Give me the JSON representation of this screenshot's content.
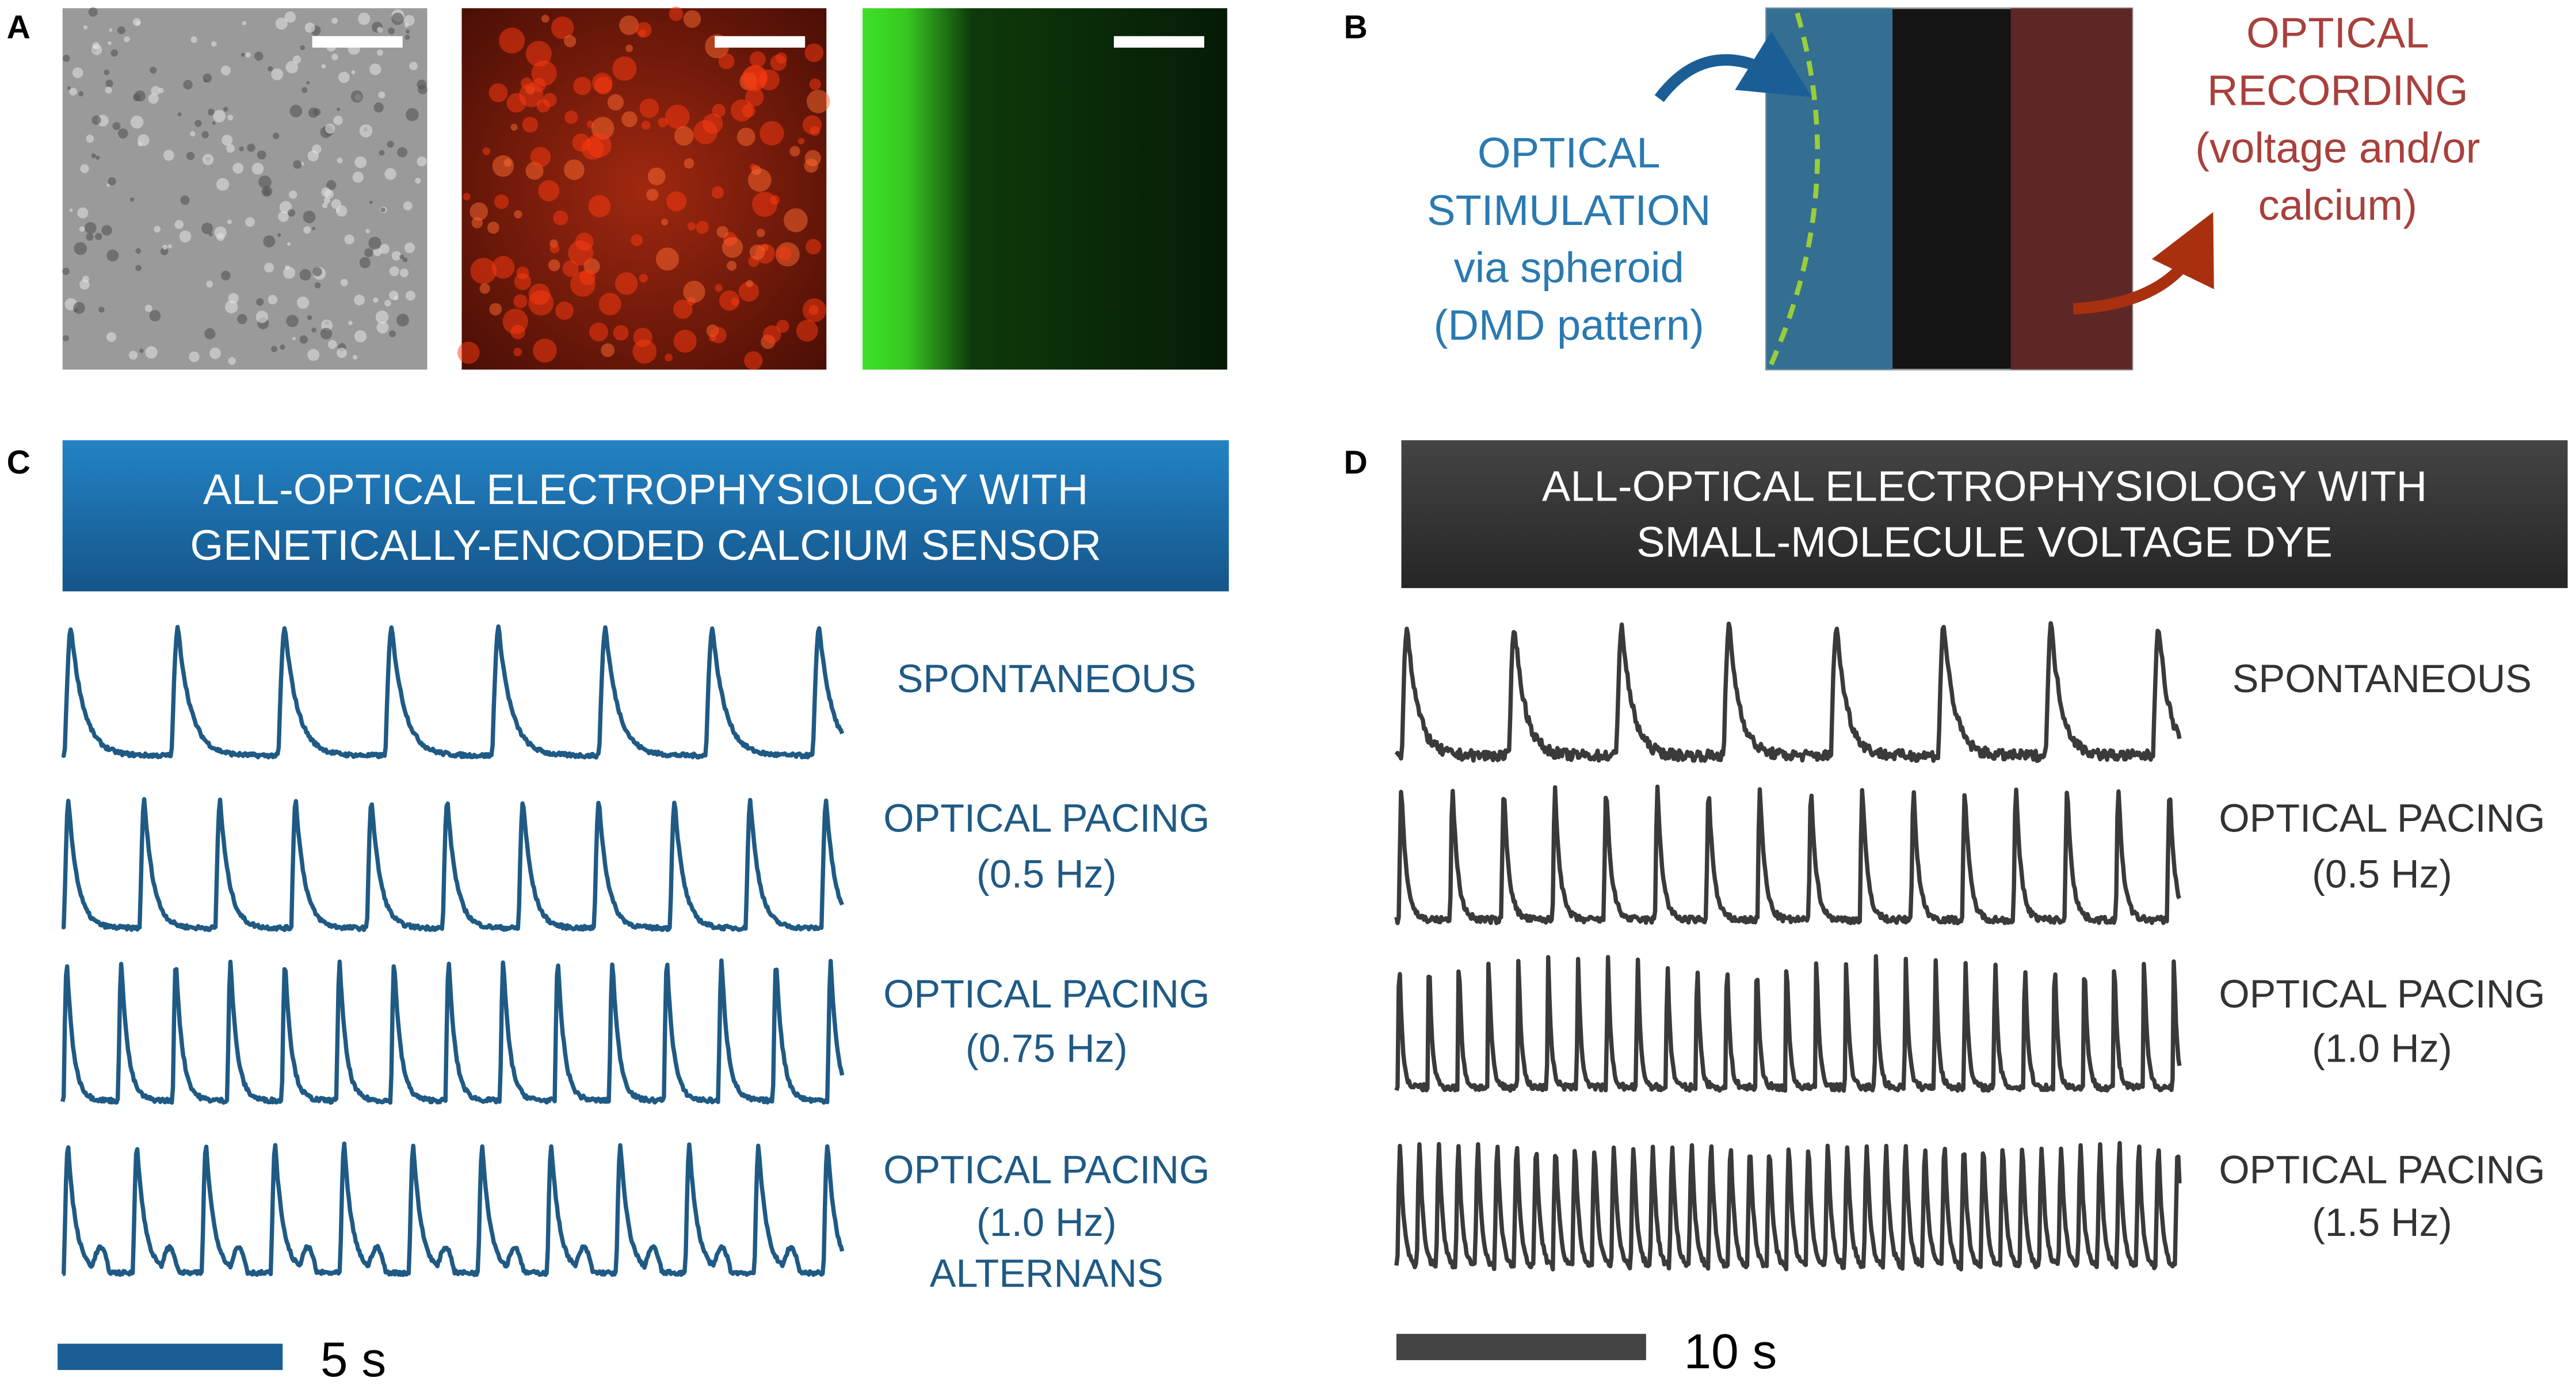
{
  "panels": {
    "a": {
      "label": "A"
    },
    "b": {
      "label": "B",
      "stimulation": [
        "OPTICAL",
        "STIMULATION",
        "via spheroid",
        "(DMD pattern)"
      ],
      "recording": [
        "OPTICAL",
        "RECORDING",
        "(voltage and/or",
        "calcium)"
      ]
    },
    "c": {
      "label": "C",
      "header": [
        "ALL-OPTICAL ELECTROPHYSIOLOGY WITH",
        "GENETICALLY-ENCODED CALCIUM SENSOR"
      ],
      "traces": [
        [
          "SPONTANEOUS"
        ],
        [
          "OPTICAL PACING",
          "(0.5 Hz)"
        ],
        [
          "OPTICAL PACING",
          "(0.75 Hz)"
        ],
        [
          "OPTICAL PACING",
          "(1.0 Hz)",
          "ALTERNANS"
        ]
      ],
      "scale": "5 s"
    },
    "d": {
      "label": "D",
      "header": [
        "ALL-OPTICAL ELECTROPHYSIOLOGY WITH",
        "SMALL-MOLECULE VOLTAGE DYE"
      ],
      "traces": [
        [
          "SPONTANEOUS"
        ],
        [
          "OPTICAL PACING",
          "(0.5 Hz)"
        ],
        [
          "OPTICAL PACING",
          "(1.0 Hz)"
        ],
        [
          "OPTICAL PACING",
          "(1.5 Hz)"
        ]
      ],
      "scale": "10 s"
    }
  }
}
